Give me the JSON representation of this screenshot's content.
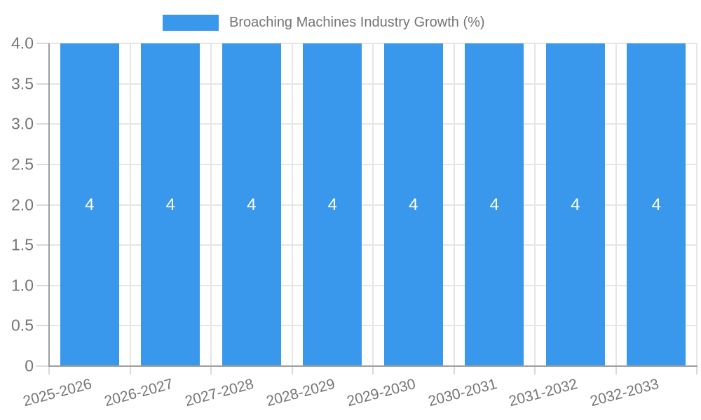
{
  "legend": {
    "label": "Broaching Machines Industry Growth (%)"
  },
  "chart_data": {
    "type": "bar",
    "title": "Broaching Machines Industry Growth (%)",
    "categories": [
      "2025-2026",
      "2026-2027",
      "2027-2028",
      "2028-2029",
      "2029-2030",
      "2030-2031",
      "2031-2032",
      "2032-2033"
    ],
    "values": [
      4,
      4,
      4,
      4,
      4,
      4,
      4,
      4
    ],
    "bar_value_labels": [
      "4",
      "4",
      "4",
      "4",
      "4",
      "4",
      "4",
      "4"
    ],
    "xlabel": "",
    "ylabel": "",
    "ylim": [
      0,
      4
    ],
    "yticks": [
      {
        "label": "4.0",
        "value": 4.0
      },
      {
        "label": "3.5",
        "value": 3.5
      },
      {
        "label": "3.0",
        "value": 3.0
      },
      {
        "label": "2.5",
        "value": 2.5
      },
      {
        "label": "2.0",
        "value": 2.0
      },
      {
        "label": "1.5",
        "value": 1.5
      },
      {
        "label": "1.0",
        "value": 1.0
      },
      {
        "label": "0.5",
        "value": 0.5
      },
      {
        "label": "0",
        "value": 0.0
      }
    ],
    "grid": true,
    "legend_position": "top"
  },
  "colors": {
    "bar": "#3998ec",
    "grid": "#e6e6e6",
    "axis": "#9e9e9e",
    "tick": "#d9d9d9",
    "text": "#757575",
    "bar_label": "#ffffff",
    "background": "#ffffff"
  }
}
